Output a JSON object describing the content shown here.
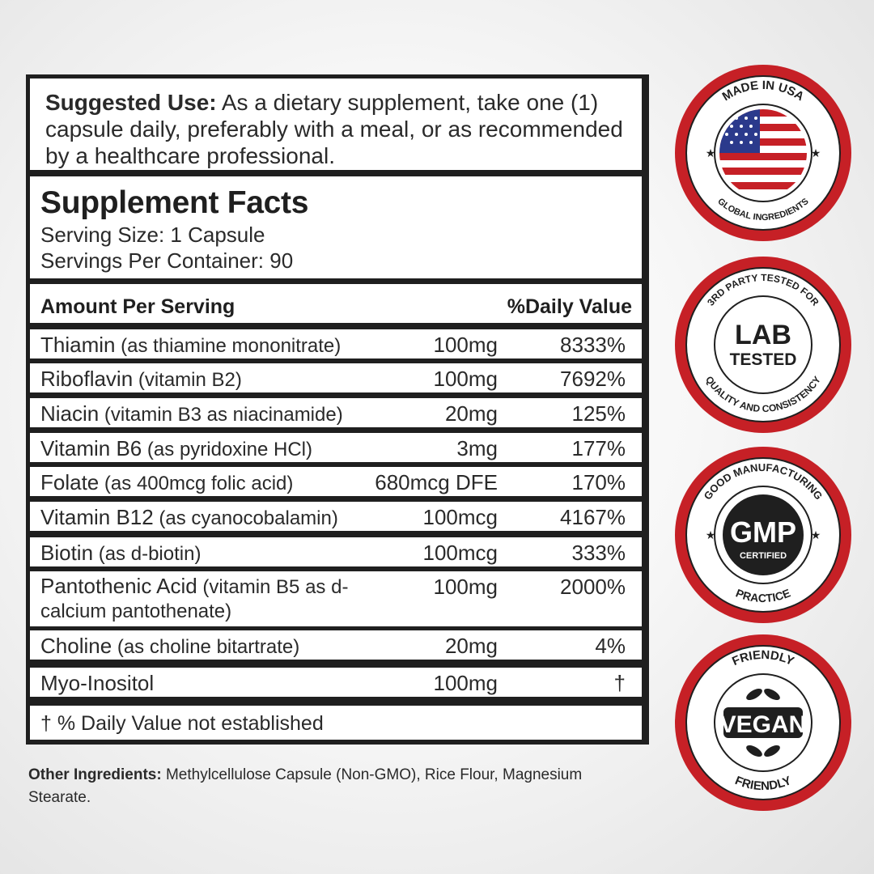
{
  "suggested_use": {
    "label": "Suggested Use:",
    "text": " As a dietary supplement, take one (1) capsule daily, preferably with a meal, or as recommended by a healthcare professional."
  },
  "facts": {
    "title": "Supplement Facts",
    "serving_size": "Serving Size: 1 Capsule",
    "servings_per_container": "Servings Per Container: 90",
    "header_amount": "Amount Per Serving",
    "header_dv": "%Daily Value",
    "rows": [
      {
        "name": "Thiamin",
        "desc": " (as thiamine mononitrate)",
        "amount": "100mg",
        "dv": "8333%"
      },
      {
        "name": "Riboflavin",
        "desc": " (vitamin B2)",
        "amount": "100mg",
        "dv": "7692%"
      },
      {
        "name": "Niacin",
        "desc": " (vitamin B3 as niacinamide)",
        "amount": "20mg",
        "dv": "125%"
      },
      {
        "name": "Vitamin B6",
        "desc": " (as pyridoxine HCl)",
        "amount": "3mg",
        "dv": "177%"
      },
      {
        "name": "Folate",
        "desc": " (as 400mcg folic acid)",
        "amount": "680mcg DFE",
        "dv": "170%"
      },
      {
        "name": "Vitamin B12",
        "desc": " (as cyanocobalamin)",
        "amount": "100mcg",
        "dv": "4167%"
      },
      {
        "name": "Biotin",
        "desc": " (as d-biotin)",
        "amount": "100mcg",
        "dv": "333%"
      },
      {
        "name": "Pantothenic Acid",
        "desc": " (vitamin B5 as d-calcium pantothenate)",
        "amount": "100mg",
        "dv": "2000%"
      },
      {
        "name": "Choline",
        "desc": " (as choline bitartrate)",
        "amount": "20mg",
        "dv": "4%"
      },
      {
        "name": "Myo-Inositol",
        "desc": "",
        "amount": "100mg",
        "dv": "†"
      }
    ],
    "footnote": "† % Daily Value not established"
  },
  "other_ingredients": {
    "label": "Other Ingredients:",
    "text": " Methylcellulose Capsule (Non-GMO), Rice Flour, Magnesium Stearate."
  },
  "badges": {
    "usa": {
      "top": "MADE IN USA",
      "bottom": "GLOBAL INGREDIENTS"
    },
    "lab": {
      "top": "3RD PARTY TESTED FOR",
      "bottom": "QUALITY AND CONSISTENCY",
      "line1": "LAB",
      "line2": "TESTED"
    },
    "gmp": {
      "top": "GOOD MANUFACTURING",
      "bottom": "PRACTICE",
      "main": "GMP",
      "sub": "CERTIFIED"
    },
    "vegan": {
      "top": "FRIENDLY",
      "bottom": "FRIENDLY",
      "main": "VEGAN"
    }
  },
  "colors": {
    "badge_red": "#c62026",
    "text_dark": "#1f1f1f",
    "flag_blue": "#2b3a8c"
  }
}
